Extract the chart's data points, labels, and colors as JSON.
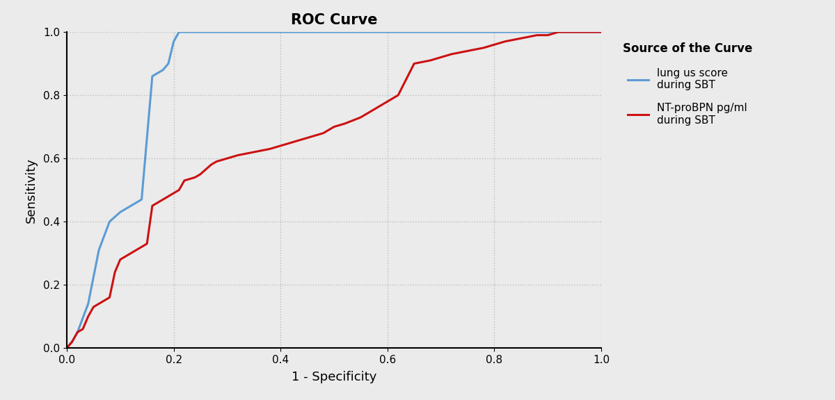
{
  "title": "ROC Curve",
  "xlabel": "1 - Specificity",
  "ylabel": "Sensitivity",
  "legend_title": "Source of the Curve",
  "blue_label": "lung us score\nduring SBT",
  "red_label": "NT-proBPN pg/ml\nduring SBT",
  "blue_color": "#5B9BD5",
  "red_color": "#CC1111",
  "background_color": "#EBEBEB",
  "plot_bg_color": "#EBEBEB",
  "xlim": [
    0.0,
    1.0
  ],
  "ylim": [
    0.0,
    1.0
  ],
  "blue_x": [
    0.0,
    0.01,
    0.02,
    0.04,
    0.06,
    0.08,
    0.1,
    0.12,
    0.14,
    0.16,
    0.18,
    0.19,
    0.2,
    0.21,
    0.22,
    1.0
  ],
  "blue_y": [
    0.0,
    0.02,
    0.05,
    0.14,
    0.31,
    0.4,
    0.43,
    0.45,
    0.47,
    0.86,
    0.88,
    0.9,
    0.97,
    1.0,
    1.0,
    1.0
  ],
  "red_x": [
    0.0,
    0.01,
    0.02,
    0.03,
    0.04,
    0.05,
    0.06,
    0.07,
    0.08,
    0.09,
    0.1,
    0.11,
    0.12,
    0.13,
    0.14,
    0.15,
    0.16,
    0.17,
    0.18,
    0.19,
    0.2,
    0.21,
    0.22,
    0.24,
    0.25,
    0.27,
    0.28,
    0.3,
    0.32,
    0.35,
    0.38,
    0.4,
    0.42,
    0.44,
    0.46,
    0.48,
    0.5,
    0.52,
    0.55,
    0.57,
    0.58,
    0.6,
    0.62,
    0.65,
    0.68,
    0.7,
    0.72,
    0.75,
    0.78,
    0.8,
    0.82,
    0.85,
    0.88,
    0.9,
    0.92,
    0.95,
    0.97,
    1.0
  ],
  "red_y": [
    0.0,
    0.02,
    0.05,
    0.06,
    0.1,
    0.13,
    0.14,
    0.15,
    0.16,
    0.24,
    0.28,
    0.29,
    0.3,
    0.31,
    0.32,
    0.33,
    0.45,
    0.46,
    0.47,
    0.48,
    0.49,
    0.5,
    0.53,
    0.54,
    0.55,
    0.58,
    0.59,
    0.6,
    0.61,
    0.62,
    0.63,
    0.64,
    0.65,
    0.66,
    0.67,
    0.68,
    0.7,
    0.71,
    0.73,
    0.75,
    0.76,
    0.78,
    0.8,
    0.9,
    0.91,
    0.92,
    0.93,
    0.94,
    0.95,
    0.96,
    0.97,
    0.98,
    0.99,
    0.99,
    1.0,
    1.0,
    1.0,
    1.0
  ],
  "xticks": [
    0.0,
    0.2,
    0.4,
    0.6,
    0.8,
    1.0
  ],
  "yticks": [
    0.0,
    0.2,
    0.4,
    0.6,
    0.8,
    1.0
  ],
  "grid_color": "#BBBBBB",
  "line_width": 2.2,
  "title_fontsize": 15,
  "axis_label_fontsize": 13,
  "tick_fontsize": 11,
  "legend_title_fontsize": 12,
  "legend_fontsize": 11
}
